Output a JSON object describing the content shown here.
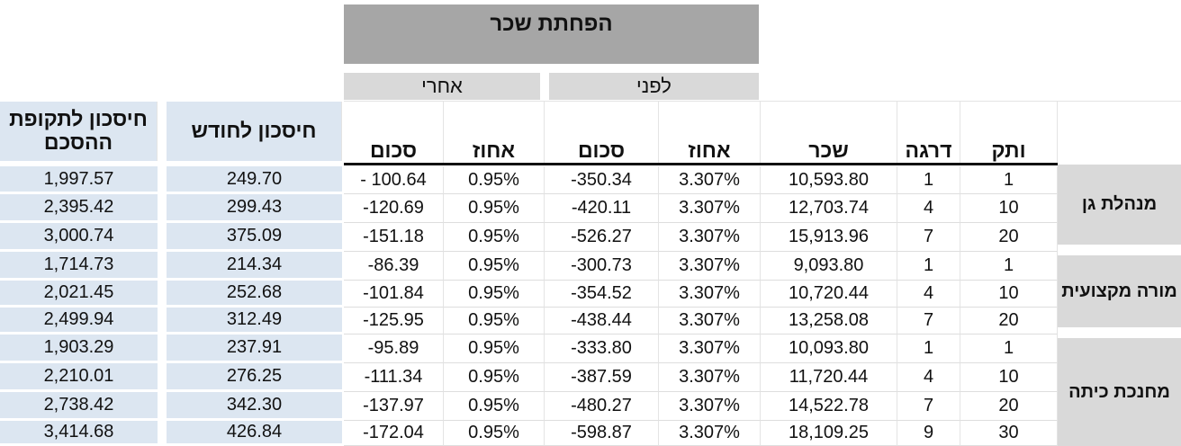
{
  "header": {
    "title": "הפחתת שכר",
    "after": "אחרי",
    "before": "לפני"
  },
  "columns": {
    "period_savings": "חיסכון לתקופת ההסכם",
    "monthly_savings": "חיסכון לחודש",
    "after_amount": "סכום",
    "after_percent": "אחוז",
    "before_amount": "סכום",
    "before_percent": "אחוז",
    "salary": "שכר",
    "grade": "דרגה",
    "seniority": "ותק"
  },
  "colors": {
    "blue_fill": "#dce6f1",
    "gray_fill": "#d9d9d9",
    "banner_fill": "#a6a6a6"
  },
  "groups": [
    {
      "role": "מנהלת גן",
      "rows": [
        0,
        1,
        2
      ]
    },
    {
      "role": "מורה מקצועית",
      "rows": [
        3,
        4,
        5
      ]
    },
    {
      "role": "מחנכת כיתה",
      "rows": [
        6,
        7,
        8,
        9
      ]
    }
  ],
  "rows": [
    {
      "period": "1,997.57",
      "monthly": "249.70",
      "after_amount": "- 100.64",
      "after_pct": "0.95%",
      "before_amount": "-350.34",
      "before_pct": "3.307%",
      "salary": "10,593.80",
      "grade": "1",
      "seniority": "1"
    },
    {
      "period": "2,395.42",
      "monthly": "299.43",
      "after_amount": "-120.69",
      "after_pct": "0.95%",
      "before_amount": "-420.11",
      "before_pct": "3.307%",
      "salary": "12,703.74",
      "grade": "4",
      "seniority": "10"
    },
    {
      "period": "3,000.74",
      "monthly": "375.09",
      "after_amount": "-151.18",
      "after_pct": "0.95%",
      "before_amount": "-526.27",
      "before_pct": "3.307%",
      "salary": "15,913.96",
      "grade": "7",
      "seniority": "20"
    },
    {
      "period": "1,714.73",
      "monthly": "214.34",
      "after_amount": "-86.39",
      "after_pct": "0.95%",
      "before_amount": "-300.73",
      "before_pct": "3.307%",
      "salary": "9,093.80",
      "grade": "1",
      "seniority": "1"
    },
    {
      "period": "2,021.45",
      "monthly": "252.68",
      "after_amount": "-101.84",
      "after_pct": "0.95%",
      "before_amount": "-354.52",
      "before_pct": "3.307%",
      "salary": "10,720.44",
      "grade": "4",
      "seniority": "10"
    },
    {
      "period": "2,499.94",
      "monthly": "312.49",
      "after_amount": "-125.95",
      "after_pct": "0.95%",
      "before_amount": "-438.44",
      "before_pct": "3.307%",
      "salary": "13,258.08",
      "grade": "7",
      "seniority": "20"
    },
    {
      "period": "1,903.29",
      "monthly": "237.91",
      "after_amount": "-95.89",
      "after_pct": "0.95%",
      "before_amount": "-333.80",
      "before_pct": "3.307%",
      "salary": "10,093.80",
      "grade": "1",
      "seniority": "1"
    },
    {
      "period": "2,210.01",
      "monthly": "276.25",
      "after_amount": "-111.34",
      "after_pct": "0.95%",
      "before_amount": "-387.59",
      "before_pct": "3.307%",
      "salary": "11,720.44",
      "grade": "4",
      "seniority": "10"
    },
    {
      "period": "2,738.42",
      "monthly": "342.30",
      "after_amount": "-137.97",
      "after_pct": "0.95%",
      "before_amount": "-480.27",
      "before_pct": "3.307%",
      "salary": "14,522.78",
      "grade": "7",
      "seniority": "20"
    },
    {
      "period": "3,414.68",
      "monthly": "426.84",
      "after_amount": "-172.04",
      "after_pct": "0.95%",
      "before_amount": "-598.87",
      "before_pct": "3.307%",
      "salary": "18,109.25",
      "grade": "9",
      "seniority": "30"
    }
  ]
}
